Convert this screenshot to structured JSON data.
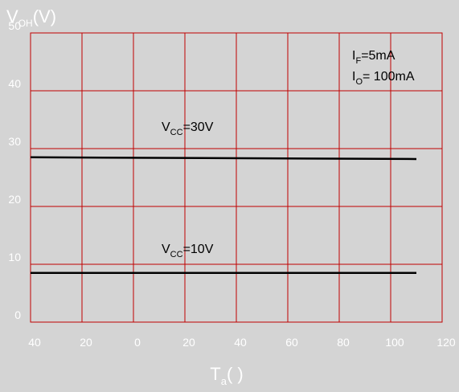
{
  "chart_data": {
    "type": "line",
    "title": "",
    "ylabel": {
      "main": "V",
      "sub": "OH",
      "unit": "(V)"
    },
    "xlabel": {
      "main": "T",
      "sub": "a",
      "unit": "(   )"
    },
    "xlim": [
      -40,
      120
    ],
    "ylim": [
      0,
      50
    ],
    "x_ticks": [
      -40,
      -20,
      0,
      20,
      40,
      60,
      80,
      100,
      120
    ],
    "x_tick_labels": [
      "40",
      "20",
      "0",
      "20",
      "40",
      "60",
      "80",
      "100",
      "120"
    ],
    "y_ticks": [
      0,
      10,
      20,
      30,
      40,
      50
    ],
    "y_tick_labels": [
      "0",
      "10",
      "20",
      "30",
      "40",
      "50"
    ],
    "grid": true,
    "series": [
      {
        "label_main": "V",
        "label_sub": "CC",
        "label_value": "=30V",
        "x": [
          -40,
          110
        ],
        "y": [
          28.5,
          28.2
        ]
      },
      {
        "label_main": "V",
        "label_sub": "CC",
        "label_value": "=10V",
        "x": [
          -40,
          110
        ],
        "y": [
          8.5,
          8.5
        ]
      }
    ],
    "conditions": [
      {
        "main": "I",
        "sub": "F",
        "value": "=5mA"
      },
      {
        "main": "I",
        "sub": "O",
        "value": "= 100mA"
      }
    ],
    "colors": {
      "background": "#d4d4d4",
      "plot_background": "#d4d4d4",
      "grid": "#c00000",
      "line": "#000000",
      "tick_text": "#ffffff"
    }
  }
}
